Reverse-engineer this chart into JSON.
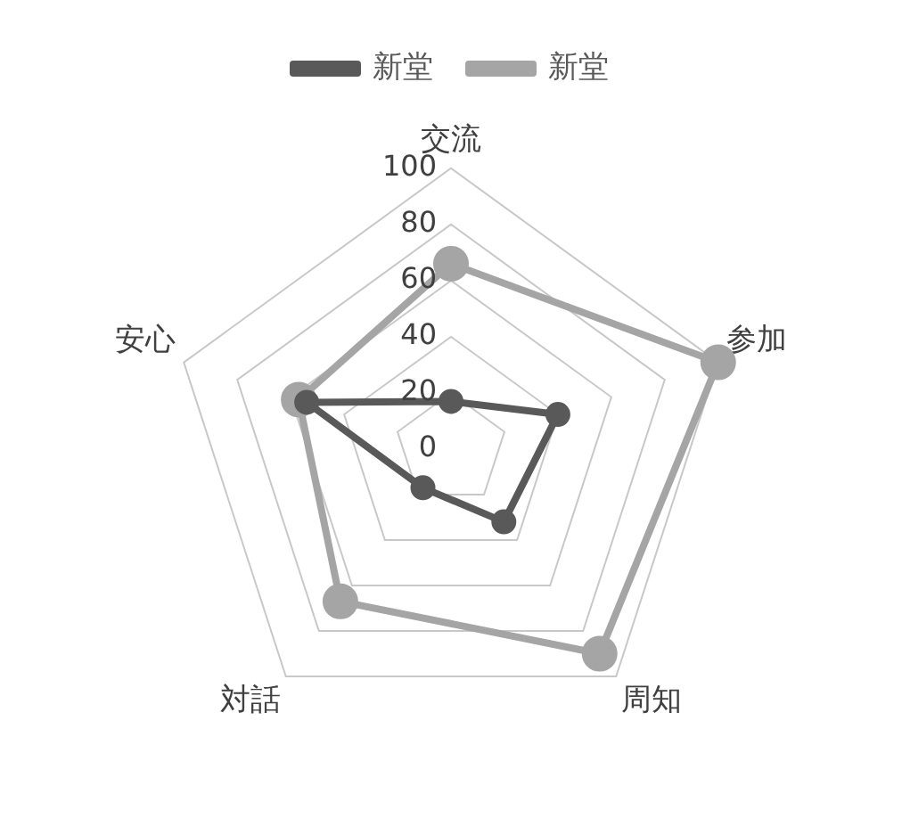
{
  "chart_data": {
    "type": "radar",
    "categories": [
      "交流",
      "参加",
      "周知",
      "対話",
      "安心"
    ],
    "series": [
      {
        "name": "新堂",
        "color": "#595959",
        "values": [
          17,
          40,
          32,
          17,
          54
        ]
      },
      {
        "name": "新堂",
        "color": "#a5a5a5",
        "values": [
          66,
          100,
          90,
          67,
          57
        ]
      }
    ],
    "ylim": [
      0,
      100
    ],
    "yticks": [
      0,
      20,
      40,
      60,
      80,
      100
    ],
    "grid": true,
    "legend": "top",
    "marker": "circle"
  }
}
